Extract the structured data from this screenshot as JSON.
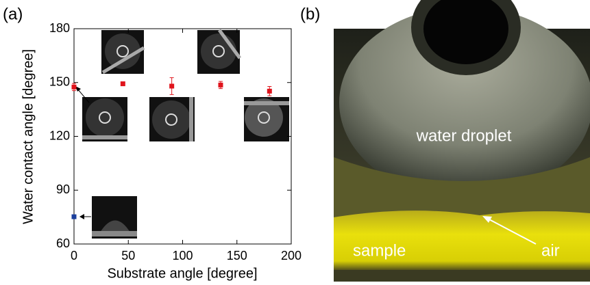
{
  "chart_data": {
    "type": "scatter",
    "panel_label": "(a)",
    "xlabel": "Substrate angle [degree]",
    "ylabel": "Water contact angle [degree]",
    "xlim": [
      0,
      200
    ],
    "ylim": [
      60,
      180
    ],
    "xticks": [
      0,
      50,
      100,
      150,
      200
    ],
    "yticks": [
      60,
      90,
      120,
      150,
      180
    ],
    "series": [
      {
        "color": "#e0141c",
        "x": [
          0,
          45,
          90,
          135,
          180
        ],
        "values": [
          147.5,
          149.3,
          148,
          148.6,
          145.2
        ],
        "errors": [
          2,
          1,
          4.7,
          2,
          2.6
        ]
      },
      {
        "color": "#1b3f9c",
        "x": [
          0
        ],
        "values": [
          75.2
        ],
        "errors": [
          0.6
        ]
      }
    ]
  },
  "photo": {
    "panel_label": "(b)",
    "droplet_label": "water droplet",
    "sample_label": "sample",
    "air_label": "air"
  }
}
